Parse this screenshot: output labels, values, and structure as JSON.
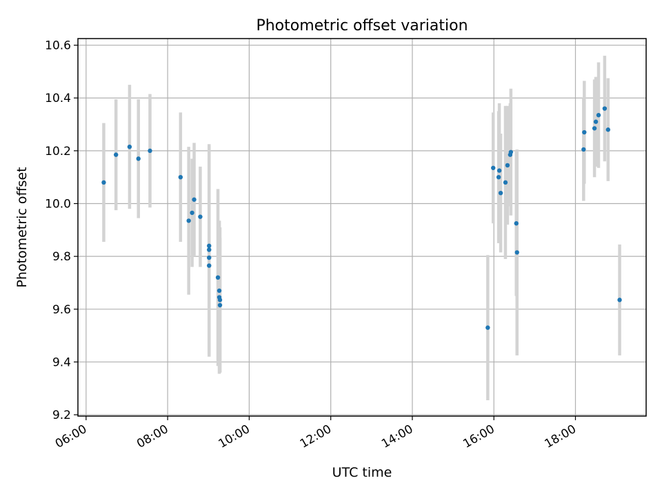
{
  "chart_data": {
    "type": "scatter",
    "title": "Photometric offset variation",
    "xlabel": "UTC time",
    "ylabel": "Photometric offset",
    "x_unit": "hours UTC",
    "xlim": [
      "05:48",
      "19:44"
    ],
    "ylim": [
      9.195,
      10.625
    ],
    "x_ticks": [
      "06:00",
      "08:00",
      "10:00",
      "12:00",
      "14:00",
      "16:00",
      "18:00"
    ],
    "y_ticks": [
      "9.2",
      "9.4",
      "9.6",
      "9.8",
      "10.0",
      "10.2",
      "10.4",
      "10.6"
    ],
    "grid": true,
    "marker_color": "#1f77b4",
    "errorbar_color": "#d3d3d3",
    "series": [
      {
        "points": [
          {
            "x": "06:26",
            "y": 10.08,
            "yerr": 0.225
          },
          {
            "x": "06:44",
            "y": 10.185,
            "yerr": 0.21
          },
          {
            "x": "07:04",
            "y": 10.215,
            "yerr": 0.235
          },
          {
            "x": "07:17",
            "y": 10.17,
            "yerr": 0.225
          },
          {
            "x": "07:34",
            "y": 10.2,
            "yerr": 0.215
          },
          {
            "x": "08:19",
            "y": 10.1,
            "yerr": 0.245
          },
          {
            "x": "08:31",
            "y": 9.935,
            "yerr": 0.28
          },
          {
            "x": "08:36",
            "y": 9.965,
            "yerr": 0.205
          },
          {
            "x": "08:39",
            "y": 10.015,
            "yerr": 0.215
          },
          {
            "x": "08:48",
            "y": 9.95,
            "yerr": 0.19
          },
          {
            "x": "09:01",
            "y": 9.84,
            "yerr": 0.385
          },
          {
            "x": "09:01",
            "y": 9.825,
            "yerr": 0.395
          },
          {
            "x": "09:01",
            "y": 9.795,
            "yerr": 0.375
          },
          {
            "x": "09:01",
            "y": 9.765,
            "yerr": 0.34
          },
          {
            "x": "09:14",
            "y": 9.72,
            "yerr": 0.335
          },
          {
            "x": "09:16",
            "y": 9.67,
            "yerr": 0.265
          },
          {
            "x": "09:16",
            "y": 9.645,
            "yerr": 0.29
          },
          {
            "x": "09:17",
            "y": 9.635,
            "yerr": 0.275
          },
          {
            "x": "09:17",
            "y": 9.615,
            "yerr": 0.255
          },
          {
            "x": "15:51",
            "y": 9.53,
            "yerr": 0.275
          },
          {
            "x": "15:59",
            "y": 10.135,
            "yerr": 0.21
          },
          {
            "x": "16:07",
            "y": 10.1,
            "yerr": 0.25
          },
          {
            "x": "16:08",
            "y": 10.125,
            "yerr": 0.255
          },
          {
            "x": "16:10",
            "y": 10.04,
            "yerr": 0.225
          },
          {
            "x": "16:17",
            "y": 10.08,
            "yerr": 0.29
          },
          {
            "x": "16:20",
            "y": 10.145,
            "yerr": 0.225
          },
          {
            "x": "16:24",
            "y": 10.185,
            "yerr": 0.195
          },
          {
            "x": "16:25",
            "y": 10.195,
            "yerr": 0.24
          },
          {
            "x": "16:33",
            "y": 9.925,
            "yerr": 0.275
          },
          {
            "x": "16:34",
            "y": 9.815,
            "yerr": 0.39
          },
          {
            "x": "18:12",
            "y": 10.205,
            "yerr": 0.195
          },
          {
            "x": "18:13",
            "y": 10.27,
            "yerr": 0.195
          },
          {
            "x": "18:28",
            "y": 10.285,
            "yerr": 0.185
          },
          {
            "x": "18:30",
            "y": 10.31,
            "yerr": 0.17
          },
          {
            "x": "18:34",
            "y": 10.335,
            "yerr": 0.2
          },
          {
            "x": "18:43",
            "y": 10.36,
            "yerr": 0.2
          },
          {
            "x": "18:48",
            "y": 10.28,
            "yerr": 0.195
          },
          {
            "x": "19:05",
            "y": 9.635,
            "yerr": 0.21
          }
        ]
      }
    ]
  }
}
